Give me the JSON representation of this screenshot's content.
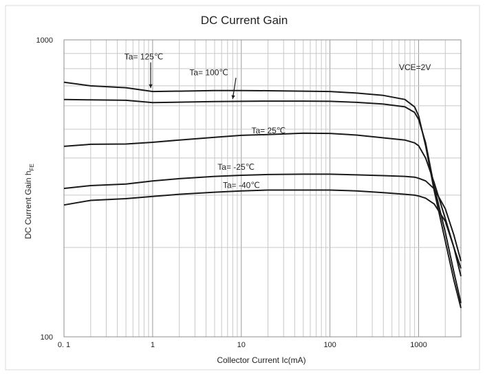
{
  "chart_data": {
    "type": "line",
    "title": "DC Current Gain",
    "xlabel": "Collector Current   Ic(mA)",
    "ylabel": "DC Current Gain  h",
    "ylabel_subscript": "FE",
    "x_scale": "log",
    "y_scale": "log",
    "xlim": [
      0.1,
      3000
    ],
    "ylim": [
      100,
      1000
    ],
    "grid": true,
    "x_tick_labels": [
      "0. 1",
      "1",
      "10",
      "100",
      "1000"
    ],
    "y_tick_labels": [
      "100",
      "1000"
    ],
    "annotation": "VCE=2V",
    "series": [
      {
        "name": "Ta= 125℃",
        "x": [
          0.1,
          0.2,
          0.5,
          1,
          2,
          5,
          10,
          20,
          50,
          100,
          200,
          400,
          700,
          900,
          1000,
          1200,
          1500,
          2000,
          2500,
          3000
        ],
        "y": [
          720,
          700,
          690,
          670,
          672,
          675,
          675,
          674,
          672,
          670,
          662,
          650,
          630,
          595,
          555,
          440,
          310,
          210,
          155,
          125
        ]
      },
      {
        "name": "Ta= 100℃",
        "x": [
          0.1,
          0.2,
          0.5,
          1,
          2,
          5,
          10,
          20,
          50,
          100,
          200,
          400,
          700,
          900,
          1000,
          1200,
          1500,
          2000,
          2500,
          3000
        ],
        "y": [
          630,
          628,
          626,
          615,
          617,
          620,
          621,
          622,
          622,
          621,
          616,
          608,
          595,
          570,
          540,
          450,
          320,
          225,
          165,
          130
        ]
      },
      {
        "name": "Ta= 25℃",
        "x": [
          0.1,
          0.2,
          0.5,
          1,
          2,
          5,
          10,
          20,
          50,
          100,
          200,
          400,
          700,
          900,
          1000,
          1200,
          1500,
          2000,
          2500,
          3000
        ],
        "y": [
          438,
          445,
          446,
          452,
          460,
          470,
          477,
          480,
          485,
          484,
          478,
          468,
          460,
          450,
          440,
          400,
          330,
          250,
          200,
          160
        ]
      },
      {
        "name": "Ta= -25℃",
        "x": [
          0.1,
          0.2,
          0.5,
          1,
          2,
          5,
          10,
          20,
          50,
          100,
          200,
          400,
          700,
          900,
          1000,
          1200,
          1500,
          2000,
          2500,
          3000
        ],
        "y": [
          316,
          323,
          327,
          335,
          341,
          347,
          350,
          352,
          353,
          353,
          351,
          349,
          347,
          345,
          342,
          335,
          315,
          270,
          220,
          180
        ]
      },
      {
        "name": "Ta= -40℃",
        "x": [
          0.1,
          0.2,
          0.5,
          1,
          2,
          5,
          10,
          20,
          50,
          100,
          200,
          400,
          700,
          900,
          1000,
          1200,
          1500,
          2000,
          2500,
          3000
        ],
        "y": [
          278,
          288,
          292,
          297,
          302,
          307,
          310,
          312,
          312,
          312,
          310,
          306,
          302,
          300,
          298,
          293,
          280,
          245,
          200,
          170
        ]
      }
    ]
  }
}
